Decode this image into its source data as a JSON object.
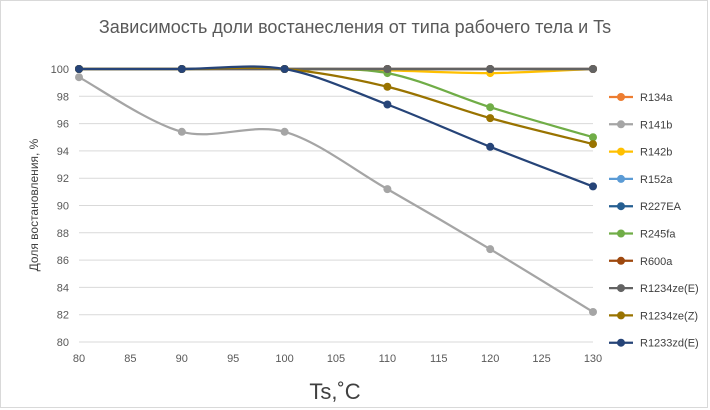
{
  "chart_data": {
    "type": "line",
    "title": "Зависимость доли востанесления от типа рабочего тела и Ts",
    "xlabel": "Ts,˚C",
    "ylabel": "Доля востановления, %",
    "x": [
      80,
      90,
      100,
      110,
      120,
      130
    ],
    "xlim": [
      80,
      130
    ],
    "ylim": [
      80,
      100
    ],
    "x_ticks": [
      "80",
      "85",
      "90",
      "95",
      "100",
      "105",
      "110",
      "115",
      "120",
      "125",
      "130"
    ],
    "y_ticks": [
      "80",
      "82",
      "84",
      "86",
      "88",
      "90",
      "92",
      "94",
      "96",
      "98",
      "100"
    ],
    "grid": "horizontal",
    "legend_position": "right",
    "series": [
      {
        "name": "R134a",
        "color": "#ED7D31",
        "values": [
          100,
          100,
          100,
          100,
          100,
          100
        ]
      },
      {
        "name": "R141b",
        "color": "#A5A5A5",
        "values": [
          99.4,
          95.4,
          95.4,
          91.2,
          86.8,
          82.2
        ]
      },
      {
        "name": "R142b",
        "color": "#FFC000",
        "values": [
          100,
          100,
          100,
          99.9,
          99.7,
          100
        ]
      },
      {
        "name": "R152a",
        "color": "#5B9BD5",
        "values": [
          100,
          100,
          100,
          100,
          100,
          100
        ]
      },
      {
        "name": "R227EA",
        "color": "#255E91",
        "values": [
          100,
          100,
          100,
          100,
          100,
          100
        ]
      },
      {
        "name": "R245fa",
        "color": "#70AD47",
        "values": [
          100,
          100,
          100,
          99.7,
          97.2,
          95.0
        ]
      },
      {
        "name": "R600a",
        "color": "#9E480E",
        "values": [
          100,
          100,
          100,
          100,
          100,
          100
        ]
      },
      {
        "name": "R1234ze(E)",
        "color": "#636363",
        "values": [
          100,
          100,
          100,
          100,
          100,
          100
        ]
      },
      {
        "name": "R1234ze(Z)",
        "color": "#997300",
        "values": [
          100,
          100,
          100,
          98.7,
          96.4,
          94.5
        ]
      },
      {
        "name": "R1233zd(E)",
        "color": "#264478",
        "values": [
          100,
          100,
          100,
          97.4,
          94.3,
          91.4
        ]
      }
    ]
  }
}
